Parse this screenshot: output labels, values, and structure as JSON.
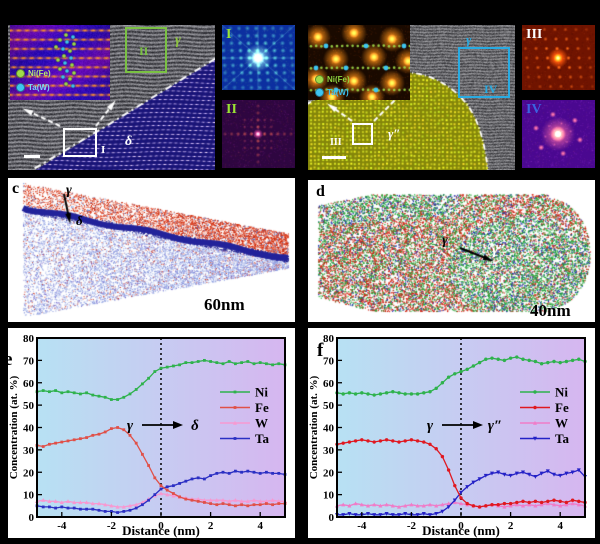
{
  "colors": {
    "background": "#000000",
    "panel_bg_left": "#b7e1f3",
    "panel_bg_right": "#d6b6f0",
    "gamma_green": "#8ec63f",
    "cyan_accent": "#29abe2",
    "ni_dot": "#9fdc4a",
    "ta_dot": "#3ec6f2"
  },
  "panel_a": {
    "legend": {
      "ni": "Ni(Fe)",
      "ta": "Ta(W)"
    },
    "gamma": "γ",
    "delta": "δ",
    "box_I": "I",
    "box_II": "II"
  },
  "panel_b": {
    "legend": {
      "ni": "Ni(Fe)",
      "ta": "Ta(W)"
    },
    "gamma": "γ",
    "gamma_dp": "γ″",
    "box_III": "III",
    "box_IV": "IV"
  },
  "fft": [
    {
      "label": "I",
      "label_color": "#9ae234"
    },
    {
      "label": "II",
      "label_color": "#9ae234"
    },
    {
      "label": "III",
      "label_color": "#ffffff"
    },
    {
      "label": "IV",
      "label_color": "#3b62e0"
    }
  ],
  "panel_c": {
    "letter": "c",
    "gamma": "γ",
    "delta": "δ",
    "scale_label": "60nm"
  },
  "panel_d": {
    "letter": "d",
    "gamma": "γ",
    "gamma_dp": "γ″",
    "scale_label": "40nm"
  },
  "chart_data": [
    {
      "id": "e",
      "letter": "e",
      "type": "line",
      "xlabel": "Distance (nm)",
      "ylabel": "Concentration (at. %)",
      "xlim": [
        -5,
        5
      ],
      "ylim": [
        0,
        80
      ],
      "xticks": [
        -4,
        -2,
        0,
        2,
        4
      ],
      "yticks": [
        0,
        10,
        20,
        30,
        40,
        50,
        60,
        70,
        80
      ],
      "grid": false,
      "legend_position": "middle-right",
      "interface_line_x": 0,
      "annotation_from": "γ",
      "annotation_to": "δ",
      "x": [
        -5,
        -4.75,
        -4.5,
        -4.25,
        -4,
        -3.75,
        -3.5,
        -3.25,
        -3,
        -2.75,
        -2.5,
        -2.25,
        -2,
        -1.75,
        -1.5,
        -1.25,
        -1,
        -0.75,
        -0.5,
        -0.25,
        0,
        0.25,
        0.5,
        0.75,
        1,
        1.25,
        1.5,
        1.75,
        2,
        2.25,
        2.5,
        2.75,
        3,
        3.25,
        3.5,
        3.75,
        4,
        4.25,
        4.5,
        4.75,
        5
      ],
      "series": [
        {
          "name": "Ni",
          "color": "#2eb24c",
          "marker": "square",
          "values": [
            56,
            56.5,
            56,
            56.5,
            55.5,
            56,
            55.5,
            55,
            55.5,
            54.5,
            54,
            53.5,
            52.5,
            52.5,
            53.5,
            55,
            57,
            59.5,
            62,
            65,
            66.5,
            67,
            67.5,
            68,
            69,
            69,
            69.5,
            70,
            69.5,
            69,
            68.5,
            69.5,
            68.5,
            69,
            69.5,
            68.5,
            69,
            68.5,
            68,
            68.5,
            68
          ]
        },
        {
          "name": "Fe",
          "color": "#e05048",
          "marker": "square",
          "values": [
            32,
            31.5,
            32.5,
            33,
            33.5,
            34,
            34.5,
            35,
            35.5,
            36.5,
            37,
            38,
            39.5,
            40,
            39,
            36.5,
            33,
            28,
            23,
            17.5,
            14,
            12,
            10.5,
            9,
            8,
            7.5,
            7,
            6.5,
            6,
            5.5,
            6,
            5.5,
            5,
            5.5,
            5,
            5.5,
            5.5,
            6,
            5.5,
            6,
            6
          ]
        },
        {
          "name": "W",
          "color": "#f799d1",
          "marker": "triangle",
          "values": [
            7,
            7.5,
            7,
            7,
            6.5,
            7,
            6.5,
            6.5,
            6.5,
            6,
            6,
            5.5,
            5,
            4.5,
            4.5,
            5,
            5.5,
            6.5,
            8,
            9.5,
            10.5,
            10,
            9.5,
            9,
            8.5,
            8,
            8,
            7.5,
            7.5,
            7.5,
            7.5,
            7,
            7.5,
            7,
            7,
            7.5,
            7,
            7,
            7.5,
            7,
            7
          ]
        },
        {
          "name": "Ta",
          "color": "#2b2fc3",
          "marker": "square",
          "values": [
            5,
            4.5,
            4.5,
            4,
            4.5,
            4,
            4,
            3.5,
            3.5,
            3.5,
            3,
            2.5,
            2.5,
            2,
            2.5,
            3,
            4,
            5.5,
            7.5,
            10,
            12.5,
            13.5,
            14,
            15,
            16,
            17,
            17.5,
            17,
            18.5,
            19.5,
            20,
            19.5,
            20.5,
            20,
            20.5,
            20,
            19.5,
            20,
            19.5,
            19.5,
            19
          ]
        }
      ]
    },
    {
      "id": "f",
      "letter": "f",
      "type": "line",
      "xlabel": "Distance (nm)",
      "ylabel": "Concentration (at. %)",
      "xlim": [
        -5,
        5
      ],
      "ylim": [
        0,
        80
      ],
      "xticks": [
        -4,
        -2,
        0,
        2,
        4
      ],
      "yticks": [
        0,
        10,
        20,
        30,
        40,
        50,
        60,
        70,
        80
      ],
      "grid": false,
      "legend_position": "middle-right",
      "interface_line_x": 0,
      "annotation_from": "γ",
      "annotation_to": "γ″",
      "x": [
        -5,
        -4.75,
        -4.5,
        -4.25,
        -4,
        -3.75,
        -3.5,
        -3.25,
        -3,
        -2.75,
        -2.5,
        -2.25,
        -2,
        -1.75,
        -1.5,
        -1.25,
        -1,
        -0.75,
        -0.5,
        -0.25,
        0,
        0.25,
        0.5,
        0.75,
        1,
        1.25,
        1.5,
        1.75,
        2,
        2.25,
        2.5,
        2.75,
        3,
        3.25,
        3.5,
        3.75,
        4,
        4.25,
        4.5,
        4.75,
        5
      ],
      "series": [
        {
          "name": "Ni",
          "color": "#2eb24c",
          "marker": "circle",
          "values": [
            55.5,
            55,
            55.5,
            55,
            55.5,
            55,
            54.5,
            55,
            55.5,
            56,
            55.5,
            55,
            55,
            55,
            55.5,
            56,
            57.5,
            60,
            62.5,
            64,
            65,
            66,
            67.5,
            69,
            70.5,
            71,
            70.5,
            70,
            71,
            71.5,
            70.5,
            70,
            69.5,
            68.5,
            69,
            69.5,
            69,
            69.5,
            70,
            70.5,
            69.5
          ]
        },
        {
          "name": "Fe",
          "color": "#e01820",
          "marker": "circle",
          "values": [
            32.5,
            33,
            33.5,
            34,
            34.5,
            34,
            33.5,
            34,
            34.5,
            34,
            33.5,
            34,
            34.5,
            34,
            33.5,
            32.5,
            30.5,
            27,
            21,
            14,
            8.5,
            6,
            5,
            4.5,
            5,
            5.5,
            5.5,
            6,
            6,
            6.5,
            7,
            6.5,
            7,
            6.5,
            7,
            7.5,
            7,
            6.5,
            7.5,
            7,
            6.5
          ]
        },
        {
          "name": "W",
          "color": "#f07cc8",
          "marker": "triangle",
          "values": [
            5,
            5.5,
            5,
            6,
            5.5,
            5,
            5.5,
            5,
            5.5,
            5,
            4.5,
            5,
            5.5,
            5,
            5,
            5.5,
            5,
            5.5,
            6,
            6.5,
            6,
            5.5,
            5,
            4.5,
            5,
            5.5,
            5,
            4.5,
            5,
            5.5,
            5,
            5.5,
            5,
            5.5,
            6,
            5.5,
            5,
            5.5,
            6,
            5.5,
            5
          ]
        },
        {
          "name": "Ta",
          "color": "#2421c6",
          "marker": "triangle-down",
          "values": [
            1,
            1,
            1.5,
            1,
            1,
            1.5,
            1,
            1,
            1.5,
            1,
            1,
            1.5,
            1,
            1,
            1.5,
            1,
            1.5,
            2.5,
            4.5,
            7.5,
            11,
            13.5,
            15.5,
            17,
            18.5,
            19.5,
            20,
            19,
            18.5,
            19.5,
            20,
            19,
            18,
            19.5,
            20.5,
            19,
            18.5,
            19.5,
            20,
            21,
            18
          ]
        }
      ]
    }
  ]
}
